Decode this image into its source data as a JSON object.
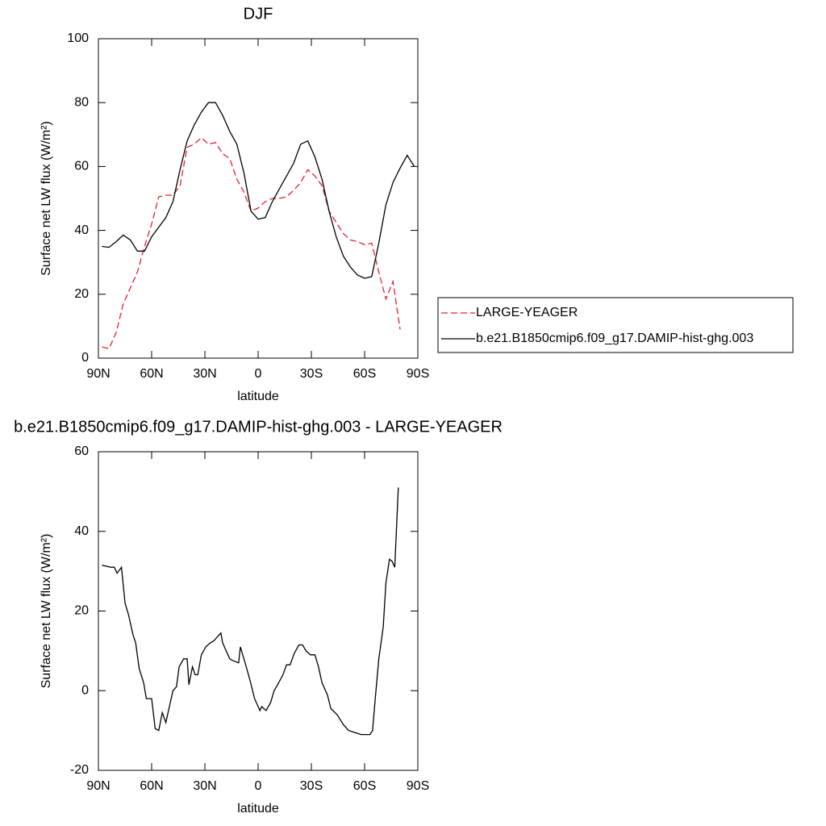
{
  "chart_data": [
    {
      "type": "line",
      "title": "DJF",
      "xlabel": "latitude",
      "ylabel": "Surface net LW flux (W/m²)",
      "x": [
        88,
        84,
        80,
        76,
        72,
        68,
        64,
        60,
        56,
        52,
        48,
        44,
        40,
        36,
        32,
        28,
        24,
        20,
        16,
        12,
        8,
        4,
        0,
        -4,
        -8,
        -12,
        -16,
        -20,
        -24,
        -28,
        -32,
        -36,
        -40,
        -44,
        -48,
        -52,
        -56,
        -60,
        -64,
        -68,
        -72,
        -76,
        -80,
        -84,
        -88
      ],
      "series": [
        {
          "name": "LARGE-YEAGER",
          "color": "#e8202a",
          "dashed": true,
          "values": [
            3.5,
            3,
            8,
            17,
            22,
            27,
            35,
            42,
            50.5,
            51,
            51,
            54,
            66,
            67,
            69,
            67,
            67.5,
            64,
            62.5,
            56,
            52,
            46,
            47,
            49,
            50,
            50,
            50.5,
            52.5,
            55,
            59,
            57,
            54,
            46,
            42.5,
            39,
            37,
            36.5,
            35.5,
            36,
            27,
            18.5,
            24,
            9,
            null,
            null
          ]
        },
        {
          "name": "b.e21.B1850cmip6.f09_g17.DAMIP-hist-ghg.003",
          "color": "#000000",
          "dashed": false,
          "values": [
            35,
            34.7,
            36.5,
            38.5,
            37,
            33.5,
            33.5,
            38,
            41,
            44,
            49,
            59,
            68,
            73,
            77,
            80,
            80,
            76,
            71,
            67,
            58,
            46,
            43.5,
            44,
            49,
            53,
            57,
            61,
            67,
            68,
            63,
            56,
            46,
            38,
            32,
            28.5,
            26,
            25,
            25.5,
            36,
            48,
            55,
            59.5,
            63.5,
            60
          ]
        }
      ],
      "xlim": [
        90,
        -90
      ],
      "xticks": [
        {
          "value": 90,
          "label": "90N"
        },
        {
          "value": 60,
          "label": "60N"
        },
        {
          "value": 30,
          "label": "30N"
        },
        0,
        {
          "value": -30,
          "label": "30S"
        },
        {
          "value": -60,
          "label": "60S"
        },
        {
          "value": -90,
          "label": "90S"
        }
      ],
      "ylim": [
        0,
        100
      ],
      "yticks": [
        0,
        20,
        40,
        60,
        80,
        100
      ],
      "legend": "right"
    },
    {
      "type": "line",
      "title": "b.e21.B1850cmip6.f09_g17.DAMIP-hist-ghg.003 - LARGE-YEAGER",
      "xlabel": "latitude",
      "ylabel": "Surface net LW flux (W/m²)",
      "x": [
        88,
        83,
        81,
        79.5,
        77,
        75,
        73,
        70.5,
        69,
        67,
        64.5,
        63,
        60,
        58,
        56,
        54,
        52,
        50,
        48,
        46,
        44.5,
        42,
        40,
        39,
        37,
        35.5,
        34,
        32,
        29.5,
        27,
        25,
        23,
        21,
        20,
        18,
        16,
        14,
        11,
        10,
        8,
        7,
        4.5,
        2,
        0,
        -1,
        -2,
        -4.5,
        -7,
        -9,
        -11,
        -14,
        -16,
        -18,
        -20.5,
        -23,
        -25,
        -27,
        -29.5,
        -32,
        -34,
        -36,
        -39,
        -41,
        -44.5,
        -48,
        -51,
        -54.5,
        -58,
        -63,
        -64.5,
        -66,
        -68,
        -70.5,
        -72,
        -74,
        -75.5,
        -77,
        -79
      ],
      "series": [
        {
          "color": "#000000",
          "dashed": false,
          "values": [
            31.5,
            31,
            31,
            29.5,
            31,
            22,
            19,
            14,
            12,
            5.5,
            2,
            -2,
            -2,
            -9.5,
            -10,
            -5.5,
            -8,
            -4,
            0,
            1,
            6,
            8,
            8,
            1.5,
            6,
            4,
            4,
            9,
            11,
            12,
            12.5,
            13.5,
            14.5,
            12,
            10,
            8,
            7.5,
            7,
            11,
            8,
            6.5,
            2.5,
            -2,
            -4,
            -5,
            -4,
            -5,
            -3,
            0,
            1.5,
            4,
            6.5,
            6.5,
            9.5,
            11.5,
            11.5,
            10,
            9,
            9,
            6,
            2,
            -1,
            -4.5,
            -6,
            -8.5,
            -10,
            -10.5,
            -11,
            -11,
            -10,
            -2,
            8,
            16,
            27,
            33,
            32.5,
            31,
            51
          ]
        }
      ],
      "xlim": [
        90,
        -90
      ],
      "xticks": [
        {
          "value": 90,
          "label": "90N"
        },
        {
          "value": 60,
          "label": "60N"
        },
        {
          "value": 30,
          "label": "30N"
        },
        0,
        {
          "value": -30,
          "label": "30S"
        },
        {
          "value": -60,
          "label": "60S"
        },
        {
          "value": -90,
          "label": "90S"
        }
      ],
      "ylim": [
        -20,
        60
      ],
      "yticks": [
        -20,
        0,
        20,
        40,
        60
      ]
    }
  ]
}
